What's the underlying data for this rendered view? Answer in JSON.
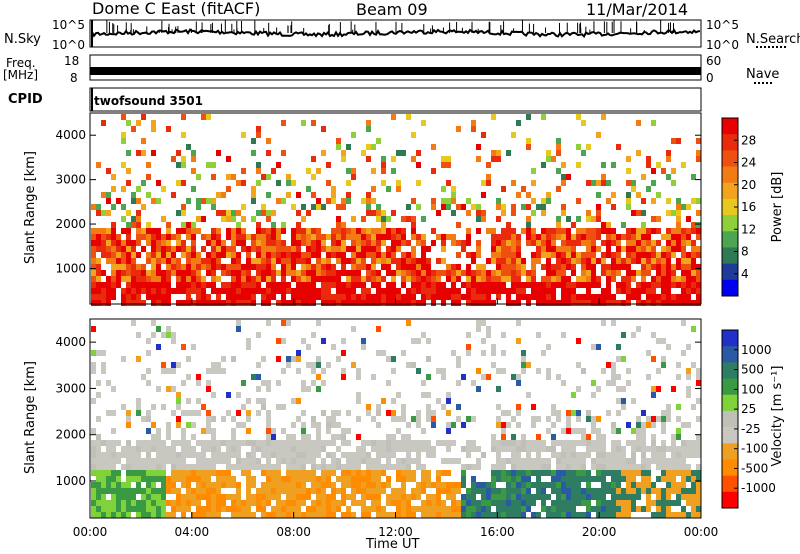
{
  "header": {
    "station": "Dome C East (fitACF)",
    "beam": "Beam 09",
    "date": "11/Mar/2014"
  },
  "side_labels": {
    "nsky": "N.Sky",
    "freq_line1": "Freq.",
    "freq_line2": "[MHz]",
    "cpid": "CPID",
    "nsearch": "N.Search",
    "nave": "Nave"
  },
  "small_axes": {
    "noise_left_top": "10^5",
    "noise_left_bottom": "10^0",
    "noise_right_top": "10^5",
    "noise_right_bottom": "10^0",
    "freq_left_top": "18",
    "freq_left_bottom": "8",
    "nave_right_top": "60",
    "nave_right_bottom": "0"
  },
  "cpid_text": "twofsound 3501",
  "colors": {
    "power_scale": [
      "#0000ee",
      "#1f3b9a",
      "#2f7a52",
      "#4ba551",
      "#8fcf3a",
      "#e6c81e",
      "#f2a51c",
      "#f37b13",
      "#ef5010",
      "#ea2a0c",
      "#e60000"
    ],
    "velocity_scale": [
      "#ff0000",
      "#ff5000",
      "#ff8c00",
      "#f0a020",
      "#c8c8c0",
      "#c0c0b8",
      "#7fd23a",
      "#3a9a44",
      "#2e7d62",
      "#2a5aa4",
      "#2030c8"
    ]
  },
  "chart_data": [
    {
      "type": "heatmap",
      "panel": "power",
      "ylabel": "Slant Range [km]",
      "y_ticks": [
        "1000",
        "2000",
        "3000",
        "4000"
      ],
      "ylim": [
        200,
        4500
      ],
      "colorbar": {
        "label": "Power [dB]",
        "ticks": [
          "4",
          "8",
          "12",
          "16",
          "20",
          "24",
          "28"
        ],
        "range": [
          0,
          32
        ]
      }
    },
    {
      "type": "heatmap",
      "panel": "velocity",
      "ylabel": "Slant Range [km]",
      "y_ticks": [
        "1000",
        "2000",
        "3000",
        "4000"
      ],
      "ylim": [
        200,
        4500
      ],
      "colorbar": {
        "label": "Velocity [m s⁻¹]",
        "ticks": [
          "1000",
          "500",
          "100",
          "25",
          "-25",
          "-100",
          "-500",
          "-1000"
        ]
      },
      "x_ticks": [
        "00:00",
        "04:00",
        "08:00",
        "12:00",
        "16:00",
        "20:00",
        "00:00"
      ],
      "xlabel": "Time UT"
    }
  ]
}
